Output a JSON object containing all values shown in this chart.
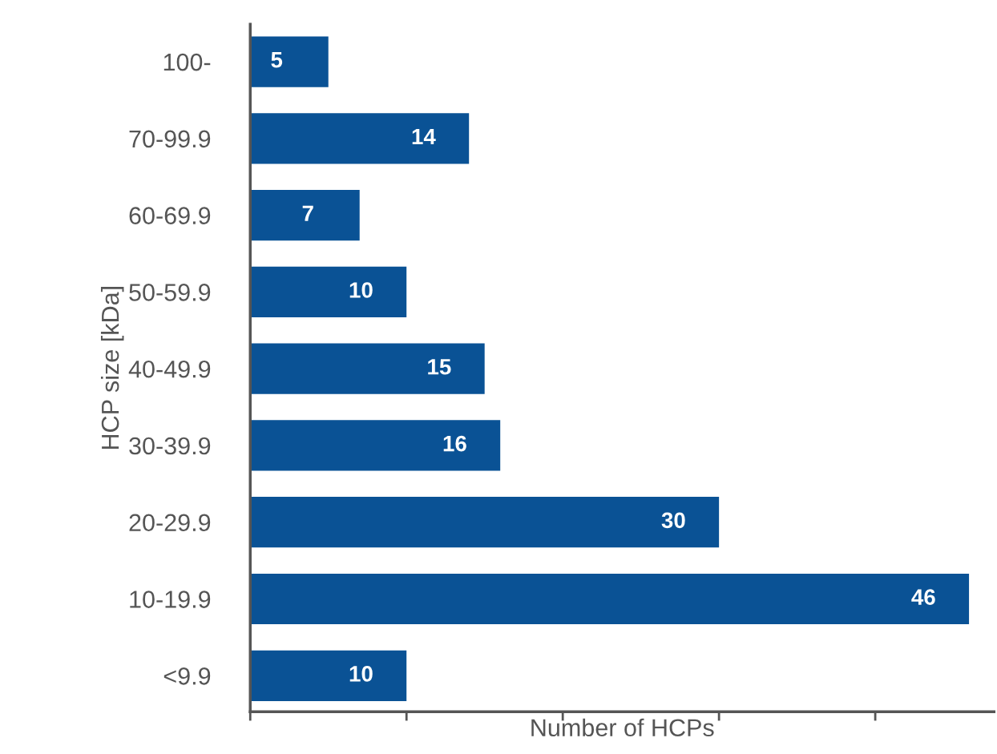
{
  "chart_data": {
    "type": "bar",
    "orientation": "horizontal",
    "xlabel": "Number of HCPs",
    "ylabel": "HCP size [kDa]",
    "categories": [
      "100-",
      "70-99.9",
      "60-69.9",
      "50-59.9",
      "40-49.9",
      "30-39.9",
      "20-29.9",
      "10-19.9",
      "<9.9"
    ],
    "values": [
      5,
      14,
      7,
      10,
      15,
      16,
      30,
      46,
      10
    ],
    "color": "#0a5295",
    "data_labels": true,
    "xlim": [
      0,
      47.6
    ],
    "xticks": [
      {
        "value": 0,
        "label": null
      },
      {
        "value": 10,
        "label": null
      },
      {
        "value": 20,
        "label": null
      },
      {
        "value": 30,
        "label": null
      },
      {
        "value": 40,
        "label": null
      }
    ],
    "tick_labels": "y",
    "grid": false,
    "legend": false
  }
}
